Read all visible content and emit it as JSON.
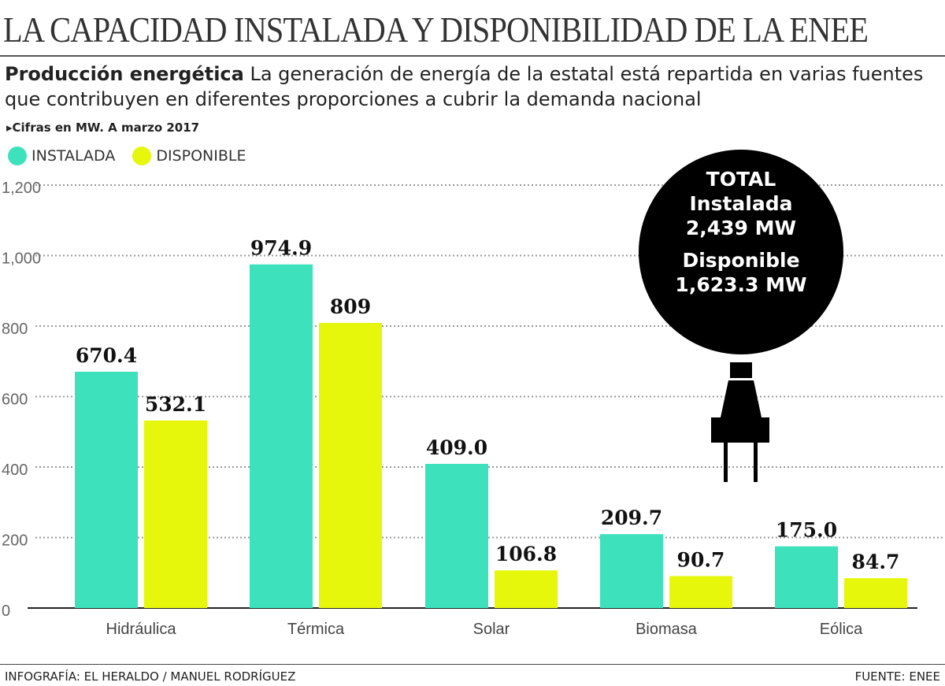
{
  "header": {
    "title": "LA CAPACIDAD INSTALADA Y DISPONIBILIDAD DE LA ENEE",
    "subtitle_bold": "Producción energética",
    "subtitle_text": " La generación de energía de la estatal está repartida en varias fuentes que contribuyen en diferentes proporciones a cubrir la demanda nacional",
    "note": "▸Cifras en MW. A marzo 2017"
  },
  "legend": {
    "instalada": "INSTALADA",
    "disponible": "DISPONIBLE"
  },
  "colors": {
    "instalada": "#3de2bd",
    "disponible": "#e6f70c"
  },
  "total_badge": {
    "heading": "TOTAL",
    "instalada_label": "Instalada",
    "instalada_value": "2,439 MW",
    "disponible_label": "Disponible",
    "disponible_value": "1,623.3 MW",
    "icon": "plug-icon"
  },
  "chart_data": {
    "type": "bar",
    "categories": [
      "Hidráulica",
      "Térmica",
      "Solar",
      "Biomasa",
      "Eólica"
    ],
    "series": [
      {
        "name": "INSTALADA",
        "values": [
          670.4,
          974.9,
          409.0,
          209.7,
          175.0
        ],
        "labels": [
          "670.4",
          "974.9",
          "409.0",
          "209.7",
          "175.0"
        ]
      },
      {
        "name": "DISPONIBLE",
        "values": [
          532.1,
          809,
          106.8,
          90.7,
          84.7
        ],
        "labels": [
          "532.1",
          "809",
          "106.8",
          "90.7",
          "84.7"
        ]
      }
    ],
    "ylim": [
      0,
      1200
    ],
    "yticks": [
      "0",
      "200",
      "400",
      "600",
      "800",
      "1,000",
      "1,200"
    ],
    "grid": true,
    "legend": "top-left"
  },
  "footer": {
    "credit": "INFOGRAFÍA: EL HERALDO / MANUEL RODRÍGUEZ",
    "source": "FUENTE: ENEE"
  }
}
